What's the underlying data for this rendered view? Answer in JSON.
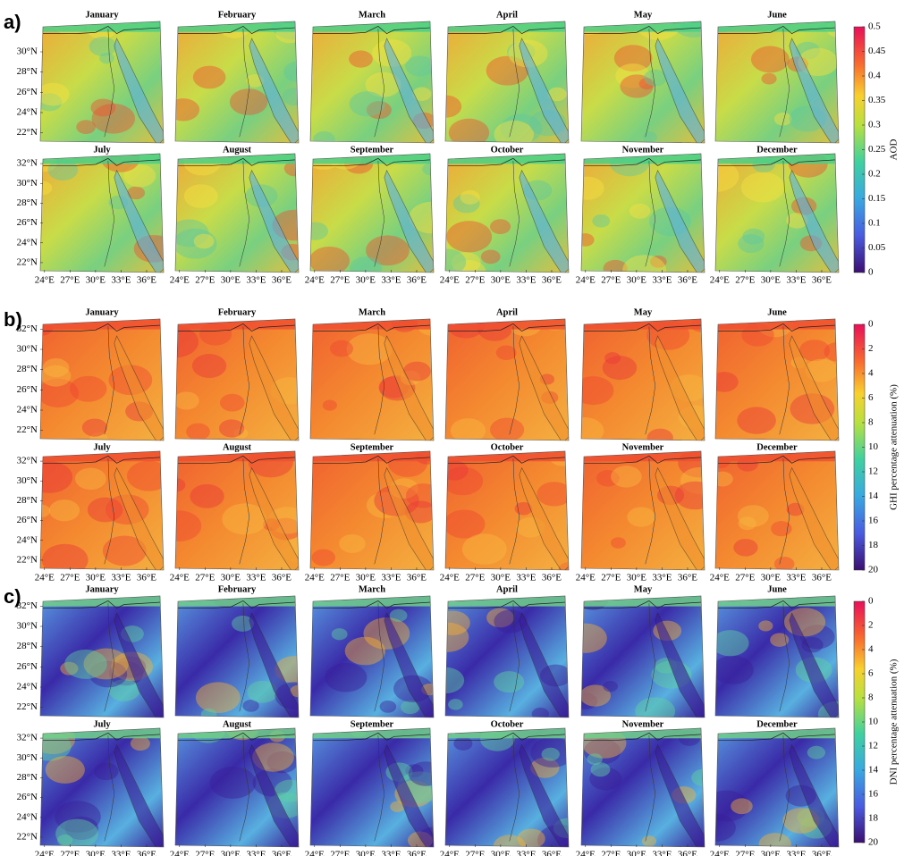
{
  "panels": [
    {
      "label": "a)",
      "colorbar": {
        "title": "AOD",
        "lim": [
          0,
          0.5
        ],
        "reversed": false,
        "ticks": [
          0,
          0.05,
          0.1,
          0.15,
          0.2,
          0.25,
          0.3,
          0.35,
          0.4,
          0.45,
          0.5
        ]
      },
      "rows": [
        {
          "titles": [
            "January",
            "February",
            "March",
            "April",
            "May",
            "June"
          ],
          "yticks": [
            {
              "value": 30,
              "label": "30°N"
            },
            {
              "value": 28,
              "label": "28°N"
            },
            {
              "value": 26,
              "label": "26°N"
            },
            {
              "value": 24,
              "label": "24°N"
            },
            {
              "value": 22,
              "label": "22°N"
            }
          ]
        },
        {
          "titles": [
            "July",
            "August",
            "September",
            "October",
            "November",
            "December"
          ],
          "yticks": [
            {
              "value": 32,
              "label": "32°N"
            },
            {
              "value": 30,
              "label": "30°N"
            },
            {
              "value": 28,
              "label": "28°N"
            },
            {
              "value": 26,
              "label": "26°N"
            },
            {
              "value": 24,
              "label": "24°N"
            },
            {
              "value": 22,
              "label": "22°N"
            }
          ]
        }
      ],
      "xticks": [
        {
          "value": 24,
          "label": "24°E"
        },
        {
          "value": 27,
          "label": "27°E"
        },
        {
          "value": 30,
          "label": "30°E"
        },
        {
          "value": 33,
          "label": "33°E"
        },
        {
          "value": 36,
          "label": "36°E"
        }
      ]
    },
    {
      "label": "b)",
      "colorbar": {
        "title": "GHI percentage attenuation (%)",
        "lim": [
          0,
          20
        ],
        "reversed": true,
        "ticks": [
          0,
          2,
          4,
          6,
          8,
          10,
          12,
          14,
          16,
          18,
          20
        ]
      },
      "rows": [
        {
          "titles": [
            "January",
            "February",
            "March",
            "April",
            "May",
            "June"
          ],
          "yticks": [
            {
              "value": 32,
              "label": "32°N"
            },
            {
              "value": 30,
              "label": "30°N"
            },
            {
              "value": 28,
              "label": "28°N"
            },
            {
              "value": 26,
              "label": "26°N"
            },
            {
              "value": 24,
              "label": "24°N"
            },
            {
              "value": 22,
              "label": "22°N"
            }
          ]
        },
        {
          "titles": [
            "July",
            "August",
            "September",
            "October",
            "November",
            "December"
          ],
          "yticks": [
            {
              "value": 32,
              "label": "32°N"
            },
            {
              "value": 30,
              "label": "30°N"
            },
            {
              "value": 28,
              "label": "28°N"
            },
            {
              "value": 26,
              "label": "26°N"
            },
            {
              "value": 24,
              "label": "24°N"
            },
            {
              "value": 22,
              "label": "22°N"
            }
          ]
        }
      ],
      "xticks": [
        {
          "value": 24,
          "label": "24°E"
        },
        {
          "value": 27,
          "label": "27°E"
        },
        {
          "value": 30,
          "label": "30°E"
        },
        {
          "value": 33,
          "label": "33°E"
        },
        {
          "value": 36,
          "label": "36°E"
        }
      ]
    },
    {
      "label": "c)",
      "colorbar": {
        "title": "DNI percentage attenuation (%)",
        "lim": [
          0,
          20
        ],
        "reversed": true,
        "ticks": [
          0,
          2,
          4,
          6,
          8,
          10,
          12,
          14,
          16,
          18,
          20
        ]
      },
      "rows": [
        {
          "titles": [
            "January",
            "February",
            "March",
            "April",
            "May",
            "June"
          ],
          "yticks": [
            {
              "value": 32,
              "label": "32°N"
            },
            {
              "value": 30,
              "label": "30°N"
            },
            {
              "value": 28,
              "label": "28°N"
            },
            {
              "value": 26,
              "label": "26°N"
            },
            {
              "value": 24,
              "label": "24°N"
            },
            {
              "value": 22,
              "label": "22°N"
            }
          ]
        },
        {
          "titles": [
            "July",
            "August",
            "September",
            "October",
            "November",
            "December"
          ],
          "yticks": [
            {
              "value": 32,
              "label": "32°N"
            },
            {
              "value": 30,
              "label": "30°N"
            },
            {
              "value": 28,
              "label": "28°N"
            },
            {
              "value": 26,
              "label": "26°N"
            },
            {
              "value": 24,
              "label": "24°N"
            },
            {
              "value": 22,
              "label": "22°N"
            }
          ]
        }
      ],
      "xticks": [
        {
          "value": 24,
          "label": "24°E"
        },
        {
          "value": 27,
          "label": "27°E"
        },
        {
          "value": 30,
          "label": "30°E"
        },
        {
          "value": 33,
          "label": "33°E"
        },
        {
          "value": 36,
          "label": "36°E"
        }
      ]
    }
  ]
}
